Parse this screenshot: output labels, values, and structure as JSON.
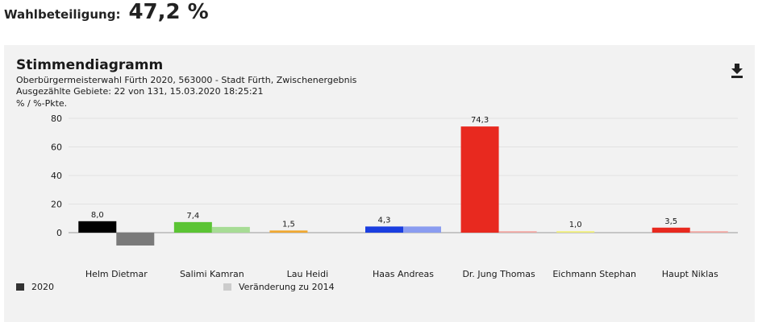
{
  "turnout": {
    "label": "Wahlbeteiligung:",
    "value": "47,2 %"
  },
  "panel": {
    "title": "Stimmendiagramm",
    "subtitle1": "Oberbürgermeisterwahl Fürth 2020, 563000 - Stadt Fürth, Zwischenergebnis",
    "subtitle2": "Ausgezählte Gebiete: 22 von 131, 15.03.2020 18:25:21",
    "download_icon": "download-icon"
  },
  "chart_data": {
    "type": "bar",
    "ylabel": "% / %-Pkte.",
    "ylim": [
      -10,
      80
    ],
    "yticks": [
      0,
      20,
      40,
      60,
      80
    ],
    "grid": true,
    "legend_position": "bottom-left",
    "categories": [
      "Helm Dietmar",
      "Salimi Kamran",
      "Lau Heidi",
      "Haas Andreas",
      "Dr. Jung Thomas",
      "Eichmann Stephan",
      "Haupt Niklas"
    ],
    "series": [
      {
        "name": "2020",
        "values": [
          8.0,
          7.4,
          1.5,
          4.3,
          74.3,
          1.0,
          3.5
        ],
        "labels": [
          "8,0",
          "7,4",
          "1,5",
          "4,3",
          "74,3",
          "1,0",
          "3,5"
        ],
        "colors": [
          "#000000",
          "#5bc434",
          "#f0a830",
          "#1a3ee0",
          "#e8291f",
          "#f0ee7a",
          "#e8291f"
        ]
      },
      {
        "name": "Veränderung zu 2014",
        "values": [
          -9.0,
          4.0,
          null,
          4.3,
          1.0,
          null,
          1.0
        ],
        "colors": [
          "#7a7a7a",
          "#a7dc95",
          null,
          "#8a9cf0",
          "#f2a7a3",
          null,
          "#f2a7a3"
        ]
      }
    ],
    "legend_colors": [
      "#333333",
      "#cccccc"
    ]
  }
}
